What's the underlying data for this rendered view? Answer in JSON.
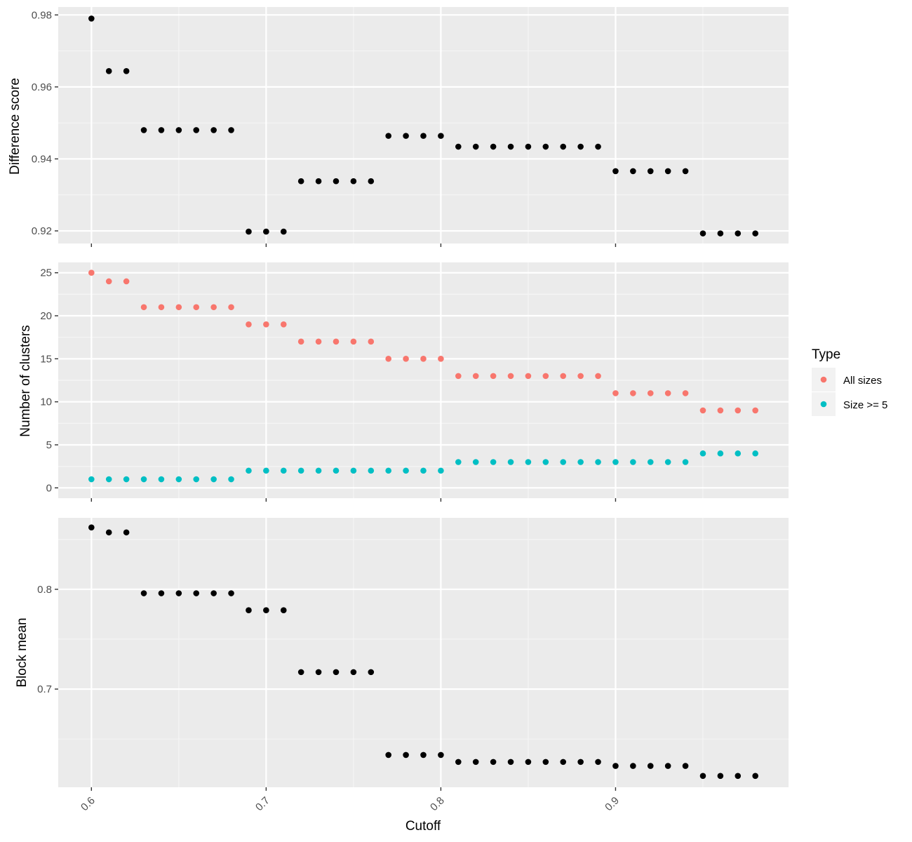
{
  "colors": {
    "panel_bg": "#ebebeb",
    "grid_major": "#ffffff",
    "grid_minor": "#f5f5f5",
    "point_default": "#000000",
    "all_sizes": "#F8766D",
    "size_ge_5": "#00BFC4"
  },
  "chart_data": [
    {
      "type": "scatter",
      "ylabel": "Difference score",
      "xlim": [
        0.581,
        0.999
      ],
      "ylim": [
        0.9165,
        0.9822
      ],
      "yticks": [
        0.92,
        0.94,
        0.96,
        0.98
      ],
      "yticklabels": [
        "0.92",
        "0.94",
        "0.96",
        "0.98"
      ],
      "x": [
        0.6,
        0.61,
        0.62,
        0.63,
        0.64,
        0.65,
        0.66,
        0.67,
        0.68,
        0.69,
        0.7,
        0.71,
        0.72,
        0.73,
        0.74,
        0.75,
        0.76,
        0.77,
        0.78,
        0.79,
        0.8,
        0.81,
        0.82,
        0.83,
        0.84,
        0.85,
        0.86,
        0.87,
        0.88,
        0.89,
        0.9,
        0.91,
        0.92,
        0.93,
        0.94,
        0.95,
        0.96,
        0.97,
        0.98
      ],
      "series": [
        {
          "values": [
            0.979,
            0.9644,
            0.9644,
            0.948,
            0.948,
            0.948,
            0.948,
            0.948,
            0.948,
            0.9198,
            0.9198,
            0.9198,
            0.9338,
            0.9338,
            0.9338,
            0.9338,
            0.9338,
            0.9464,
            0.9464,
            0.9464,
            0.9464,
            0.9434,
            0.9434,
            0.9434,
            0.9434,
            0.9434,
            0.9434,
            0.9434,
            0.9434,
            0.9434,
            0.9366,
            0.9366,
            0.9366,
            0.9366,
            0.9366,
            0.9193,
            0.9193,
            0.9193,
            0.9193
          ],
          "color": "#000000"
        }
      ]
    },
    {
      "type": "scatter",
      "ylabel": "Number of clusters",
      "xlim": [
        0.581,
        0.999
      ],
      "ylim": [
        -1.2,
        26.2
      ],
      "yticks": [
        0,
        5,
        10,
        15,
        20,
        25
      ],
      "yticklabels": [
        "0",
        "5",
        "10",
        "15",
        "20",
        "25"
      ],
      "x": [
        0.6,
        0.61,
        0.62,
        0.63,
        0.64,
        0.65,
        0.66,
        0.67,
        0.68,
        0.69,
        0.7,
        0.71,
        0.72,
        0.73,
        0.74,
        0.75,
        0.76,
        0.77,
        0.78,
        0.79,
        0.8,
        0.81,
        0.82,
        0.83,
        0.84,
        0.85,
        0.86,
        0.87,
        0.88,
        0.89,
        0.9,
        0.91,
        0.92,
        0.93,
        0.94,
        0.95,
        0.96,
        0.97,
        0.98
      ],
      "series": [
        {
          "name": "All sizes",
          "color": "#F8766D",
          "values": [
            25,
            24,
            24,
            21,
            21,
            21,
            21,
            21,
            21,
            19,
            19,
            19,
            17,
            17,
            17,
            17,
            17,
            15,
            15,
            15,
            15,
            13,
            13,
            13,
            13,
            13,
            13,
            13,
            13,
            13,
            11,
            11,
            11,
            11,
            11,
            9,
            9,
            9,
            9
          ]
        },
        {
          "name": "Size >= 5",
          "color": "#00BFC4",
          "values": [
            1,
            1,
            1,
            1,
            1,
            1,
            1,
            1,
            1,
            2,
            2,
            2,
            2,
            2,
            2,
            2,
            2,
            2,
            2,
            2,
            2,
            3,
            3,
            3,
            3,
            3,
            3,
            3,
            3,
            3,
            3,
            3,
            3,
            3,
            3,
            4,
            4,
            4,
            4
          ]
        }
      ],
      "legend": {
        "title": "Type",
        "position": "right"
      }
    },
    {
      "type": "scatter",
      "ylabel": "Block mean",
      "xlabel": "Cutoff",
      "xlim": [
        0.581,
        0.999
      ],
      "ylim": [
        0.6016,
        0.8716
      ],
      "yticks": [
        0.7,
        0.8
      ],
      "yticklabels": [
        "0.7",
        "0.8"
      ],
      "xticks": [
        0.6,
        0.7,
        0.8,
        0.9
      ],
      "xticklabels": [
        "0.6",
        "0.7",
        "0.8",
        "0.9"
      ],
      "x": [
        0.6,
        0.61,
        0.62,
        0.63,
        0.64,
        0.65,
        0.66,
        0.67,
        0.68,
        0.69,
        0.7,
        0.71,
        0.72,
        0.73,
        0.74,
        0.75,
        0.76,
        0.77,
        0.78,
        0.79,
        0.8,
        0.81,
        0.82,
        0.83,
        0.84,
        0.85,
        0.86,
        0.87,
        0.88,
        0.89,
        0.9,
        0.91,
        0.92,
        0.93,
        0.94,
        0.95,
        0.96,
        0.97,
        0.98
      ],
      "series": [
        {
          "values": [
            0.862,
            0.857,
            0.857,
            0.796,
            0.796,
            0.796,
            0.796,
            0.796,
            0.796,
            0.779,
            0.779,
            0.779,
            0.717,
            0.717,
            0.717,
            0.717,
            0.717,
            0.634,
            0.634,
            0.634,
            0.634,
            0.627,
            0.627,
            0.627,
            0.627,
            0.627,
            0.627,
            0.627,
            0.627,
            0.627,
            0.623,
            0.623,
            0.623,
            0.623,
            0.623,
            0.613,
            0.613,
            0.613,
            0.613
          ],
          "color": "#000000"
        }
      ]
    }
  ]
}
